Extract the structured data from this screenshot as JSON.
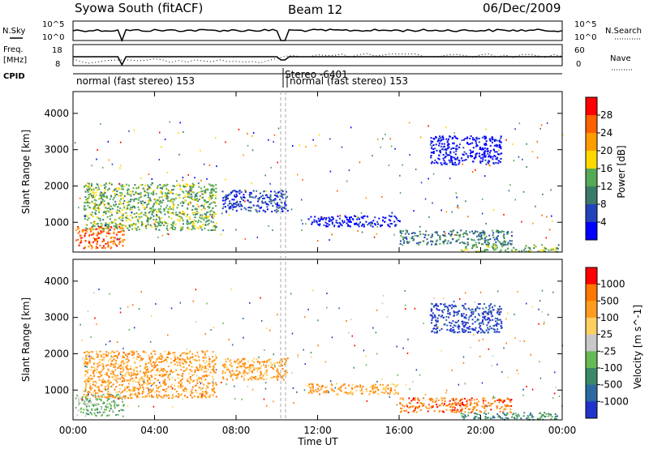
{
  "header": {
    "station": "Syowa South (fitACF)",
    "beam": "Beam 12",
    "date": "06/Dec/2009"
  },
  "strips": {
    "nsky_label": "N.Sky",
    "nsky_ticks": [
      "10^5",
      "10^0"
    ],
    "freq_label_line1": "Freq.",
    "freq_label_line2": "[MHz]",
    "freq_ticks": [
      "18",
      "8"
    ],
    "nsearch_label": "N.Search",
    "nsearch_ticks": [
      "10^5",
      "10^0"
    ],
    "nave_label": "Nave",
    "nave_ticks": [
      "60",
      "0"
    ],
    "cpid_label": "CPID",
    "cpid_segments": [
      "normal (fast stereo) 153",
      "Stereo -6401",
      "normal (fast stereo) 153"
    ]
  },
  "chart_data": [
    {
      "type": "heatmap",
      "panel": "power",
      "ylabel": "Slant Range [km]",
      "ylim": [
        180,
        4600
      ],
      "yticks": [
        "4000",
        "3000",
        "2000",
        "1000"
      ],
      "xlim_hours": [
        0,
        24
      ],
      "colorbar_label": "Power [dB]",
      "colorbar_ticks": [
        "28",
        "24",
        "20",
        "16",
        "12",
        "8",
        "4"
      ],
      "colors": [
        "#0000ff",
        "#2244bb",
        "#3a7a6a",
        "#55aa55",
        "#ffd800",
        "#ff9c00",
        "#ff6000",
        "#ff0000"
      ],
      "regions": [
        {
          "t0": 0.1,
          "t1": 2.5,
          "r0": 300,
          "r1": 900,
          "color_index": 6
        },
        {
          "t0": 0.5,
          "t1": 7.0,
          "r0": 800,
          "r1": 2100,
          "color_index": 3
        },
        {
          "t0": 7.3,
          "t1": 10.5,
          "r0": 1300,
          "r1": 1900,
          "color_index": 1
        },
        {
          "t0": 11.5,
          "t1": 16.0,
          "r0": 900,
          "r1": 1200,
          "color_index": 0
        },
        {
          "t0": 16.0,
          "t1": 21.5,
          "r0": 400,
          "r1": 800,
          "color_index": 2
        },
        {
          "t0": 19.0,
          "t1": 23.8,
          "r0": 200,
          "r1": 400,
          "color_index": 3
        },
        {
          "t0": 17.5,
          "t1": 21.0,
          "r0": 2600,
          "r1": 3400,
          "color_index": 0
        }
      ]
    },
    {
      "type": "heatmap",
      "panel": "velocity",
      "ylabel": "Slant Range [km]",
      "ylim": [
        180,
        4600
      ],
      "yticks": [
        "4000",
        "3000",
        "2000",
        "1000"
      ],
      "xlim_hours": [
        0,
        24
      ],
      "colorbar_label": "Velocity [m s^-1]",
      "colorbar_ticks": [
        "1000",
        "500",
        "100",
        "25",
        "-25",
        "-100",
        "-500",
        "-1000"
      ],
      "colors": [
        "#2233cc",
        "#2a6aa0",
        "#3a8a6a",
        "#66bb55",
        "#c8c8c8",
        "#ffd060",
        "#ff9c20",
        "#ff7800",
        "#ff0000"
      ],
      "regions": [
        {
          "t0": 0.1,
          "t1": 2.5,
          "r0": 300,
          "r1": 900,
          "color_index": 3
        },
        {
          "t0": 0.5,
          "t1": 7.0,
          "r0": 800,
          "r1": 2100,
          "color_index": 6
        },
        {
          "t0": 7.3,
          "t1": 10.5,
          "r0": 1300,
          "r1": 1900,
          "color_index": 6
        },
        {
          "t0": 11.5,
          "t1": 16.0,
          "r0": 900,
          "r1": 1200,
          "color_index": 6
        },
        {
          "t0": 16.0,
          "t1": 21.5,
          "r0": 400,
          "r1": 800,
          "color_index": 7
        },
        {
          "t0": 19.0,
          "t1": 23.8,
          "r0": 200,
          "r1": 400,
          "color_index": 2
        },
        {
          "t0": 17.5,
          "t1": 21.0,
          "r0": 2600,
          "r1": 3400,
          "color_index": 0
        }
      ]
    }
  ],
  "xaxis": {
    "ticks": [
      "00:00",
      "04:00",
      "08:00",
      "12:00",
      "16:00",
      "20:00",
      "00:00"
    ],
    "label": "Time UT"
  }
}
